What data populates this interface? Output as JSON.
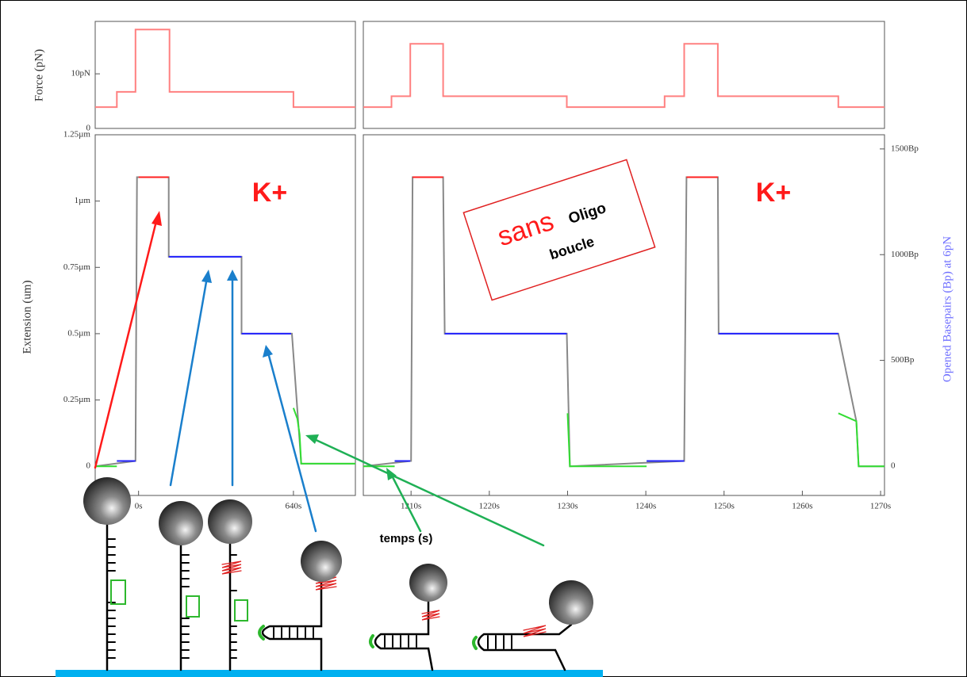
{
  "chart_data": [
    {
      "type": "line",
      "ylabel": "Force (pN)",
      "xlim": [
        614.4,
        648
      ],
      "ylim": [
        0,
        19.6
      ],
      "yticks": [
        0,
        {
          "value": 10,
          "label": "10pN"
        }
      ],
      "series": [
        {
          "color": "#ff8080",
          "x": [
            614.4,
            617.2,
            617.2,
            619.6,
            619.6,
            624,
            624,
            640,
            640,
            648
          ],
          "values": [
            3.9,
            3.9,
            6.7,
            6.7,
            18.1,
            18.1,
            6.7,
            6.7,
            3.9,
            3.9
          ]
        }
      ]
    },
    {
      "type": "line",
      "ylabel": "Extension (um)",
      "annotations": [
        "K+"
      ],
      "xlim": [
        614.4,
        648
      ],
      "ylim": [
        -0.11,
        1.25
      ],
      "xticks": [
        {
          "value": 620,
          "label": "0s"
        },
        {
          "value": 640,
          "label": "640s"
        }
      ],
      "yticks": [
        0,
        {
          "value": 0.25,
          "label": "0.25µm"
        },
        {
          "value": 0.5,
          "label": "0.5µm"
        },
        {
          "value": 0.75,
          "label": "0.75µm"
        },
        {
          "value": 1,
          "label": "1µm"
        },
        {
          "value": 1.25,
          "label": "1.25µm"
        }
      ],
      "series": [
        {
          "color": "#888888",
          "x": [
            614.4,
            619.6,
            619.8,
            623.9,
            623.9,
            633.3,
            633.3,
            639.8,
            641,
            648
          ],
          "values": [
            0,
            0.02,
            1.09,
            1.09,
            0.79,
            0.79,
            0.5,
            0.5,
            0.01,
            0.01
          ]
        },
        {
          "color": "#33dd33",
          "x": [
            614.4,
            617.2,
            null,
            640,
            640.5,
            640.8,
            641,
            648
          ],
          "values": [
            0,
            0,
            null,
            0.22,
            0.18,
            0.12,
            0.01,
            0.01
          ]
        },
        {
          "color": "#2222ff",
          "x": [
            617.2,
            619.6,
            null,
            623.9,
            633.3,
            null,
            633.3,
            639.7
          ],
          "values": [
            0.02,
            0.02,
            null,
            0.79,
            0.79,
            null,
            0.5,
            0.5
          ]
        },
        {
          "color": "#ff2020",
          "x": [
            620,
            623.9
          ],
          "values": [
            1.09,
            1.09
          ]
        }
      ]
    },
    {
      "type": "line",
      "xlim": [
        1203.9,
        1270.5
      ],
      "ylim": [
        0,
        19.6
      ],
      "series": [
        {
          "color": "#ff8080",
          "x": [
            1203.9,
            1207.5,
            1207.5,
            1209.9,
            1209.9,
            1214.1,
            1214.1,
            1229.9,
            1229.9,
            1242.4,
            1242.4,
            1244.9,
            1244.9,
            1249.2,
            1249.2,
            1264.6,
            1264.6,
            1270.5
          ],
          "values": [
            3.9,
            3.9,
            5.9,
            5.9,
            15.5,
            15.5,
            5.9,
            5.9,
            3.9,
            3.9,
            5.9,
            5.9,
            15.5,
            15.5,
            5.9,
            5.9,
            3.9,
            3.9
          ]
        }
      ]
    },
    {
      "type": "line",
      "xlabel": "temps (s)",
      "y2label": "Opened Basepairs (Bp) at 6pN",
      "annotations": [
        "K+"
      ],
      "xlim": [
        1203.9,
        1270.5
      ],
      "ylim": [
        -0.11,
        1.25
      ],
      "y2lim": [
        -139,
        1567
      ],
      "xticks": [
        {
          "value": 1210,
          "label": "1210s"
        },
        {
          "value": 1220,
          "label": "1220s"
        },
        {
          "value": 1230,
          "label": "1230s"
        },
        {
          "value": 1240,
          "label": "1240s"
        },
        {
          "value": 1250,
          "label": "1250s"
        },
        {
          "value": 1260,
          "label": "1260s"
        },
        {
          "value": 1270,
          "label": "1270s"
        }
      ],
      "y2ticks": [
        0,
        {
          "value": 500,
          "label": "500Bp"
        },
        {
          "value": 1000,
          "label": "1000Bp"
        },
        {
          "value": 1500,
          "label": "1500Bp"
        }
      ],
      "series": [
        {
          "color": "#888888",
          "x": [
            1203.9,
            1210,
            1210.2,
            1214.1,
            1214.3,
            1229.9,
            1230.3,
            1244.9,
            1245.2,
            1249.2,
            1249.3,
            1264.6,
            1266.9,
            1267.2,
            1270.5
          ],
          "values": [
            0,
            0.02,
            1.09,
            1.09,
            0.5,
            0.5,
            0,
            0.02,
            1.09,
            1.09,
            0.5,
            0.5,
            0.17,
            0,
            0
          ]
        },
        {
          "color": "#33dd33",
          "x": [
            1203.9,
            1207.9,
            null,
            1230,
            1230.3,
            1240.1,
            null,
            1264.6,
            1266.9,
            1267.2,
            1270.5
          ],
          "values": [
            0,
            0,
            null,
            0.2,
            0,
            0,
            null,
            0.2,
            0.17,
            0,
            0
          ]
        },
        {
          "color": "#2222ff",
          "x": [
            1207.9,
            1209.9,
            null,
            1214.3,
            1229.9,
            null,
            1240.1,
            1244.9,
            null,
            1249.3,
            1264.6
          ],
          "values": [
            0.02,
            0.02,
            null,
            0.5,
            0.5,
            null,
            0.02,
            0.02,
            null,
            0.5,
            0.5
          ]
        },
        {
          "color": "#ff2020",
          "x": [
            1210.2,
            1214.1,
            null,
            1245.2,
            1249.2
          ],
          "values": [
            1.09,
            1.09,
            null,
            1.09,
            1.09
          ]
        }
      ]
    }
  ],
  "inset_note": {
    "words": [
      "sans",
      "Oligo",
      "boucle"
    ]
  }
}
